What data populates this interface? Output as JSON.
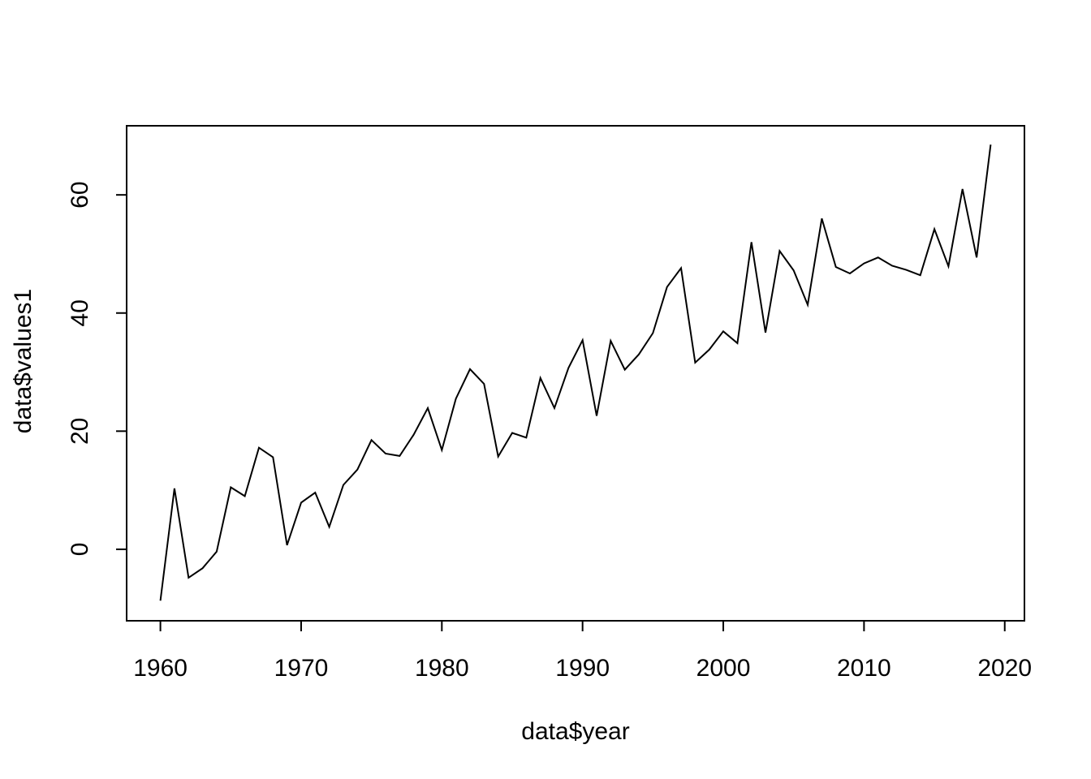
{
  "figure": {
    "background": "#ffffff",
    "foreground": "#000000",
    "line_color": "#000000",
    "line_width": 2
  },
  "chart_data": {
    "type": "line",
    "title": "",
    "xlabel": "data$year",
    "ylabel": "data$values1",
    "legend": null,
    "grid": false,
    "x_range": [
      1957.6,
      2021.4
    ],
    "y_range": [
      -12.1,
      71.7
    ],
    "x_ticks": [
      1960,
      1970,
      1980,
      1990,
      2000,
      2010,
      2020
    ],
    "y_ticks": [
      0,
      20,
      40,
      60
    ],
    "x": [
      1960,
      1961,
      1962,
      1963,
      1964,
      1965,
      1966,
      1967,
      1968,
      1969,
      1970,
      1971,
      1972,
      1973,
      1974,
      1975,
      1976,
      1977,
      1978,
      1979,
      1980,
      1981,
      1982,
      1983,
      1984,
      1985,
      1986,
      1987,
      1988,
      1989,
      1990,
      1991,
      1992,
      1993,
      1994,
      1995,
      1996,
      1997,
      1998,
      1999,
      2000,
      2001,
      2002,
      2003,
      2004,
      2005,
      2006,
      2007,
      2008,
      2009,
      2010,
      2011,
      2012,
      2013,
      2014,
      2015,
      2016,
      2017,
      2018,
      2019
    ],
    "series": [
      {
        "name": "data$values1",
        "values": [
          -8.7,
          10.3,
          -4.8,
          -3.2,
          -0.4,
          10.5,
          9.0,
          17.2,
          15.6,
          0.7,
          7.9,
          9.6,
          3.8,
          10.9,
          13.5,
          18.5,
          16.2,
          15.8,
          19.4,
          23.9,
          16.8,
          25.5,
          30.5,
          28.0,
          15.7,
          19.7,
          18.9,
          29.0,
          23.9,
          30.7,
          35.4,
          22.6,
          35.3,
          30.4,
          33.0,
          36.6,
          44.4,
          47.6,
          31.6,
          33.8,
          36.9,
          34.9,
          52.0,
          36.7,
          50.5,
          47.2,
          41.4,
          56.0,
          47.8,
          46.7,
          48.4,
          49.4,
          48.0,
          47.3,
          46.4,
          54.2,
          47.9,
          61.0,
          49.4,
          68.5
        ]
      }
    ]
  }
}
